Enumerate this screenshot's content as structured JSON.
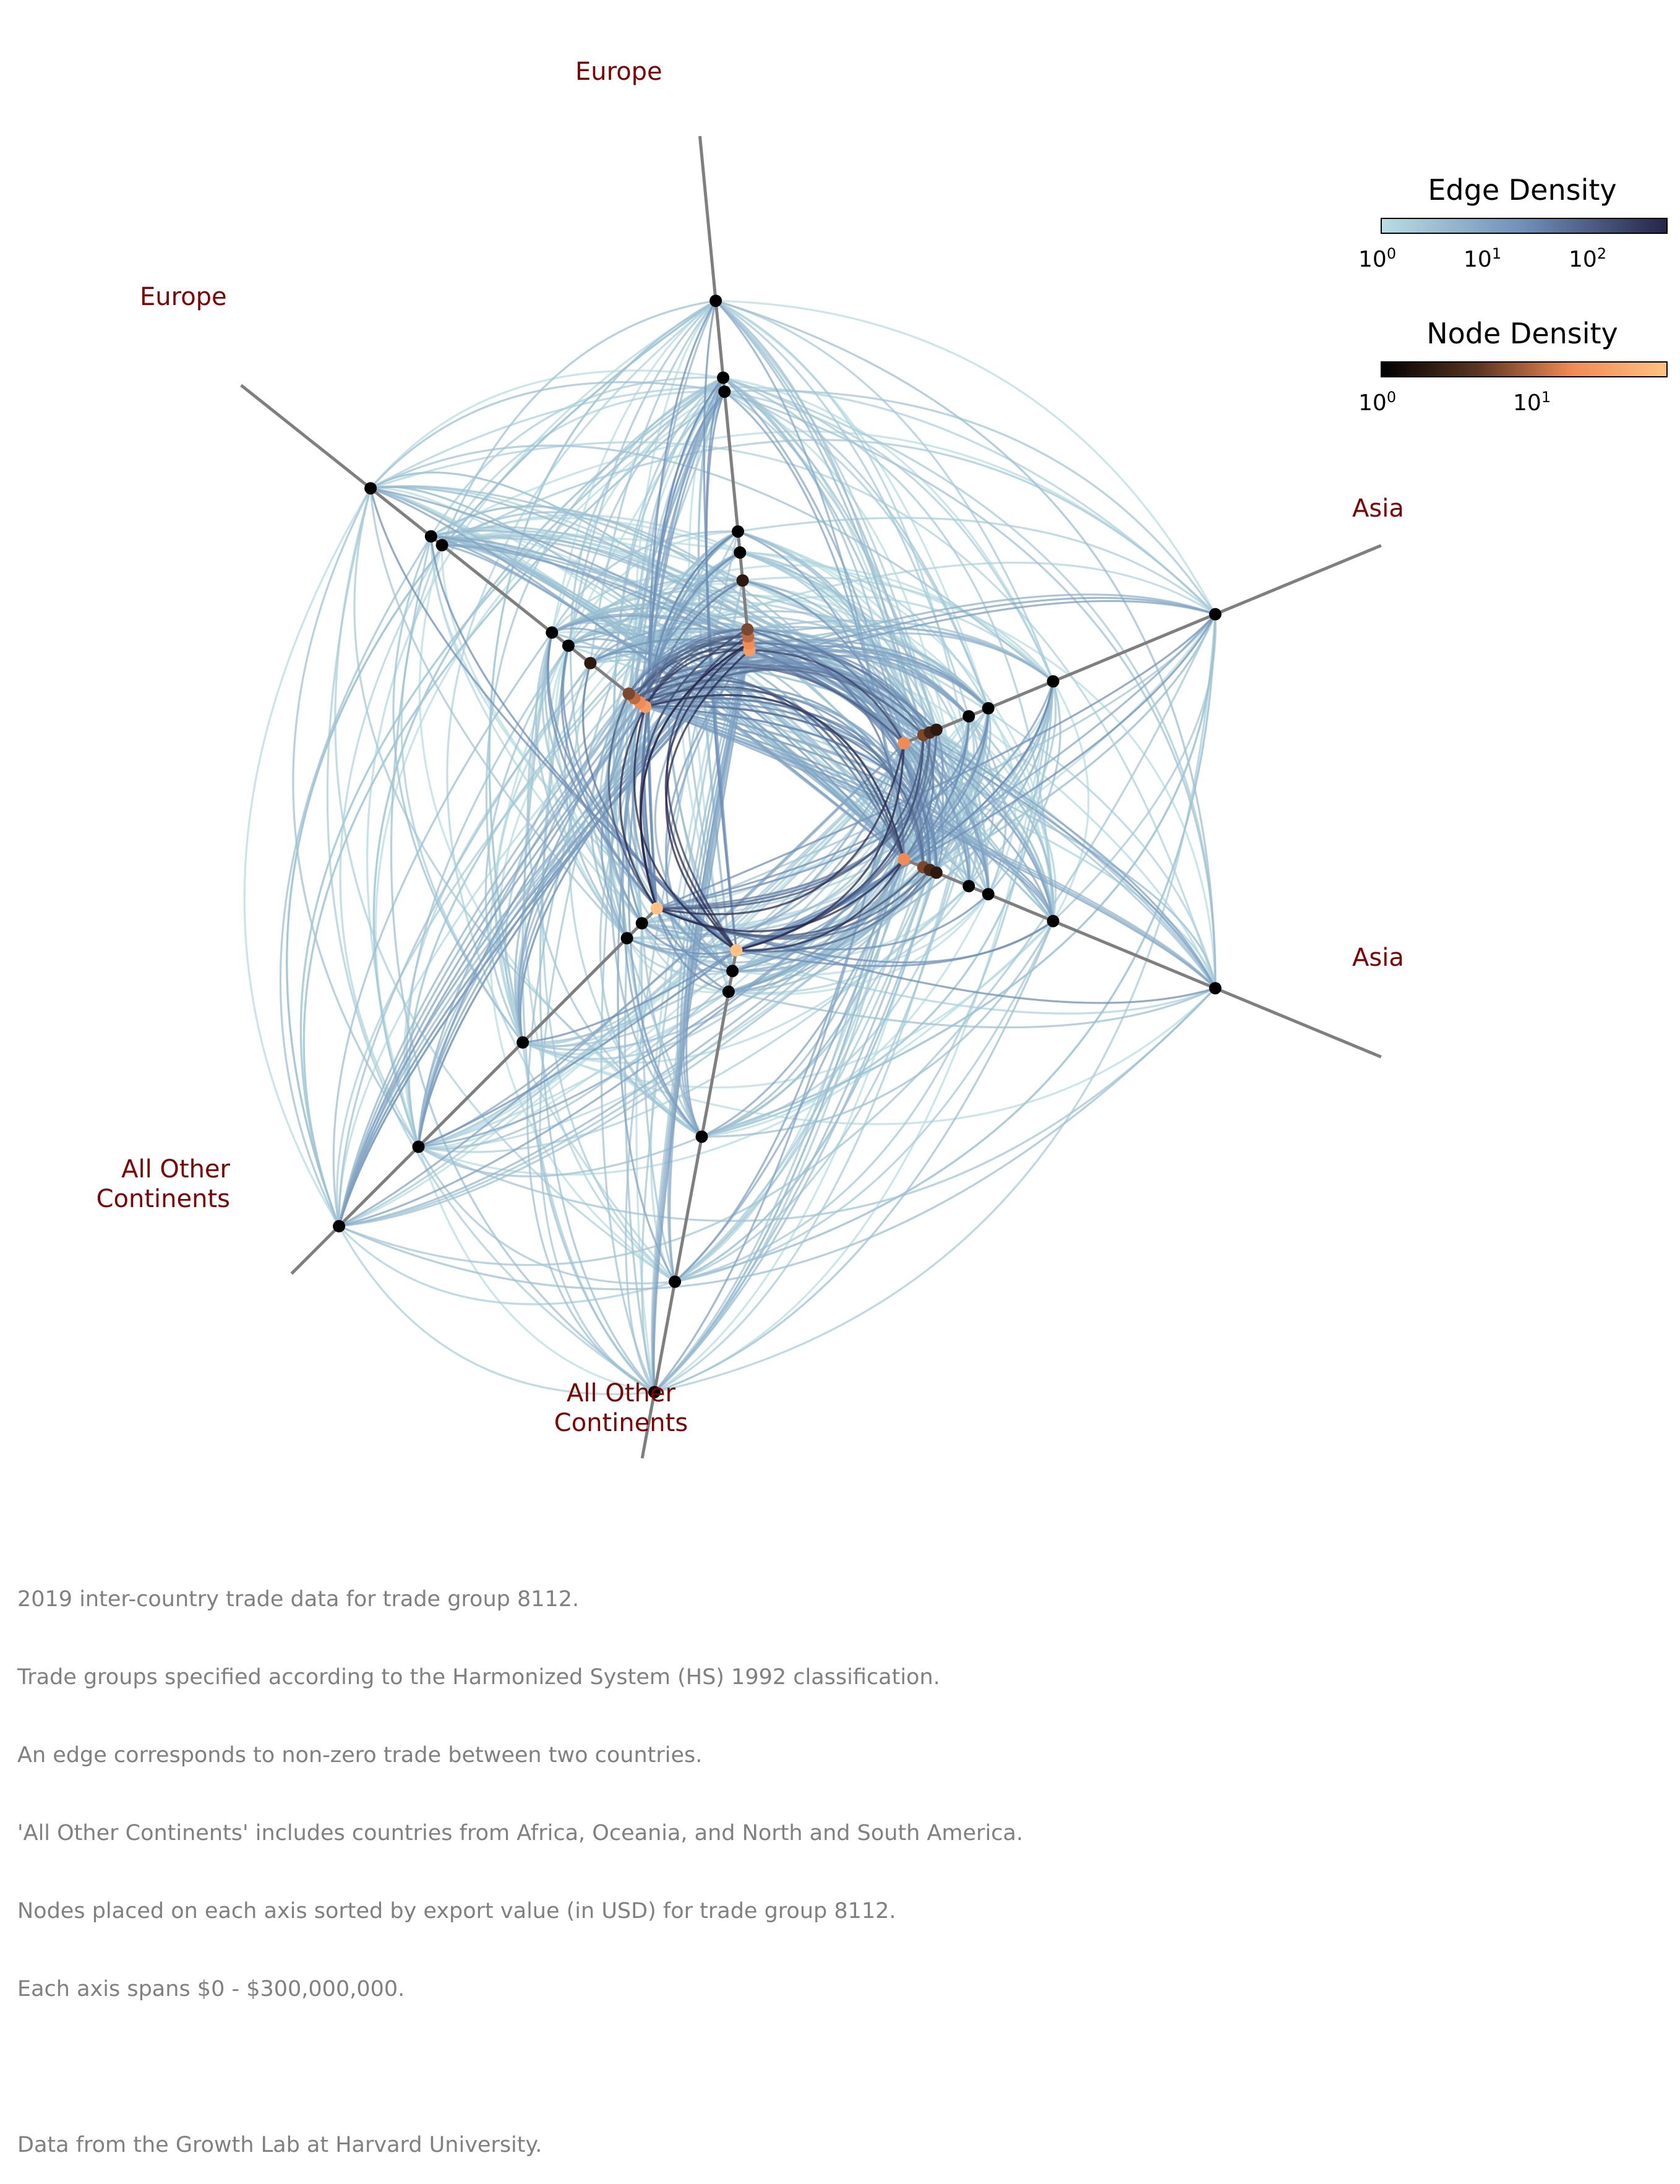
{
  "axis_labels": {
    "europe_a": "Europe",
    "europe_b": "Europe",
    "asia_a": "Asia",
    "asia_b": "Asia",
    "other_a_line1": "All Other",
    "other_a_line2": "Continents",
    "other_b_line1": "All Other",
    "other_b_line2": "Continents"
  },
  "legend": {
    "edge_title": "Edge Density",
    "edge_ticks": [
      {
        "base": "10",
        "exp": "0"
      },
      {
        "base": "10",
        "exp": "1"
      },
      {
        "base": "10",
        "exp": "2"
      }
    ],
    "node_title": "Node Density",
    "node_ticks": [
      {
        "base": "10",
        "exp": "0"
      },
      {
        "base": "10",
        "exp": "1"
      }
    ]
  },
  "colors": {
    "axis_line": "#7f7f7f",
    "label": "#800000",
    "edge_low": "#a7ccd6",
    "edge_high": "#2b2b55",
    "node_low": "#000000",
    "node_high": "#ffc07a",
    "footnote": "#808080"
  },
  "footnotes": [
    "2019 inter-country trade data for trade group 8112.",
    "Trade groups specified according to the Harmonized System (HS) 1992 classification.",
    "An edge corresponds to non-zero trade between two countries.",
    "'All Other Continents' includes countries from Africa, Oceania, and North and South America.",
    "Nodes placed on each axis sorted by export value (in USD) for trade group 8112.",
    "Each axis spans $0 - $300,000,000.",
    "",
    "Data from the Growth Lab at Harvard University."
  ],
  "chart_data": {
    "type": "hive",
    "axis_range_usd": [
      0,
      300000000
    ],
    "axes": [
      {
        "id": "europe_a",
        "group": "Europe",
        "nodes": [
          {
            "r": 0.0,
            "d": 30
          },
          {
            "r": 0.01,
            "d": 22
          },
          {
            "r": 0.02,
            "d": 12
          },
          {
            "r": 0.03,
            "d": 6
          },
          {
            "r": 0.1,
            "d": 2
          },
          {
            "r": 0.14,
            "d": 1
          },
          {
            "r": 0.17,
            "d": 1
          },
          {
            "r": 0.37,
            "d": 1
          },
          {
            "r": 0.39,
            "d": 1
          },
          {
            "r": 0.5,
            "d": 1
          }
        ]
      },
      {
        "id": "asia_a",
        "group": "Asia",
        "nodes": [
          {
            "r": 0.0,
            "d": 22
          },
          {
            "r": 0.03,
            "d": 6
          },
          {
            "r": 0.04,
            "d": 3
          },
          {
            "r": 0.05,
            "d": 2
          },
          {
            "r": 0.1,
            "d": 1
          },
          {
            "r": 0.13,
            "d": 1
          },
          {
            "r": 0.23,
            "d": 1
          },
          {
            "r": 0.48,
            "d": 1
          }
        ]
      },
      {
        "id": "asia_b",
        "group": "Asia",
        "nodes": [
          {
            "r": 0.0,
            "d": 22
          },
          {
            "r": 0.03,
            "d": 6
          },
          {
            "r": 0.04,
            "d": 3
          },
          {
            "r": 0.05,
            "d": 2
          },
          {
            "r": 0.1,
            "d": 1
          },
          {
            "r": 0.13,
            "d": 1
          },
          {
            "r": 0.23,
            "d": 1
          },
          {
            "r": 0.48,
            "d": 1
          }
        ]
      },
      {
        "id": "other_a",
        "group": "All Other Continents",
        "nodes": [
          {
            "r": 0.0,
            "d": 60
          },
          {
            "r": 0.03,
            "d": 1
          },
          {
            "r": 0.06,
            "d": 1
          },
          {
            "r": 0.27,
            "d": 1
          },
          {
            "r": 0.48,
            "d": 1
          },
          {
            "r": 0.64,
            "d": 1
          }
        ]
      },
      {
        "id": "other_b",
        "group": "All Other Continents",
        "nodes": [
          {
            "r": 0.0,
            "d": 60
          },
          {
            "r": 0.03,
            "d": 1
          },
          {
            "r": 0.06,
            "d": 1
          },
          {
            "r": 0.27,
            "d": 1
          },
          {
            "r": 0.48,
            "d": 1
          },
          {
            "r": 0.64,
            "d": 1
          }
        ]
      },
      {
        "id": "europe_b",
        "group": "Europe",
        "nodes": [
          {
            "r": 0.0,
            "d": 30
          },
          {
            "r": 0.01,
            "d": 22
          },
          {
            "r": 0.02,
            "d": 12
          },
          {
            "r": 0.03,
            "d": 6
          },
          {
            "r": 0.1,
            "d": 2
          },
          {
            "r": 0.14,
            "d": 1
          },
          {
            "r": 0.17,
            "d": 1
          },
          {
            "r": 0.37,
            "d": 1
          },
          {
            "r": 0.39,
            "d": 1
          },
          {
            "r": 0.5,
            "d": 1
          }
        ]
      }
    ],
    "edge_density_range": [
      1,
      500
    ],
    "node_density_range": [
      1,
      60
    ],
    "edge_colorscale": "log",
    "node_colorscale": "log"
  }
}
